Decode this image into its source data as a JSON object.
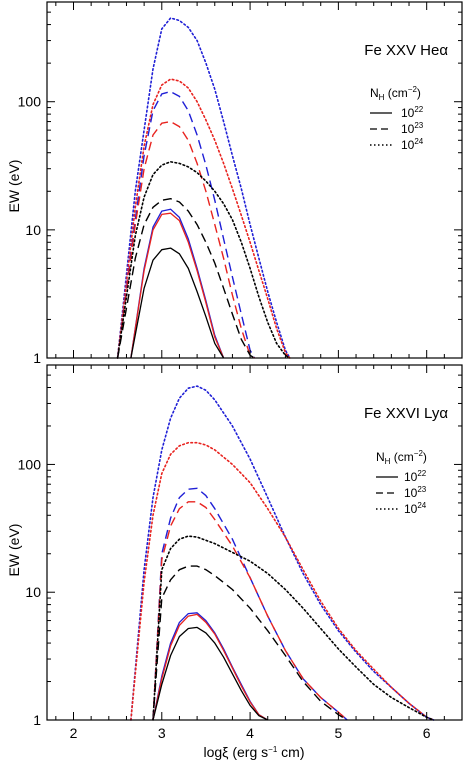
{
  "chart_data": [
    {
      "type": "line",
      "title": "Fe XXV Heα",
      "xlabel": "",
      "ylabel": "EW (eV)",
      "xscale": "linear",
      "yscale": "log",
      "xlim": [
        1.7,
        6.4
      ],
      "ylim": [
        1,
        600
      ],
      "xticks": [
        2,
        3,
        4,
        5,
        6
      ],
      "yticks": [
        {
          "value": 1,
          "label": "1"
        },
        {
          "value": 10,
          "label": "10"
        },
        {
          "value": 100,
          "label": "100"
        }
      ],
      "legend": {
        "title": {
          "main": "N",
          "sub": "H",
          "rest": " (cm",
          "exp": "−2",
          "close": ")"
        },
        "placement": "top-right",
        "entries": [
          {
            "base": "10",
            "exp": "22",
            "linestyle": "solid"
          },
          {
            "base": "10",
            "exp": "23",
            "linestyle": "dashed"
          },
          {
            "base": "10",
            "exp": "24",
            "linestyle": "dotted"
          }
        ]
      },
      "series": [
        {
          "linestyle": "dotted",
          "color": "#1f1fd6",
          "x": [
            2.5,
            2.7,
            2.8,
            2.9,
            3.0,
            3.1,
            3.2,
            3.3,
            3.4,
            3.5,
            3.6,
            3.7,
            3.8,
            3.9,
            4.0,
            4.1,
            4.2,
            4.3,
            4.4,
            4.45
          ],
          "y": [
            1.0,
            20,
            60,
            180,
            370,
            450,
            430,
            380,
            300,
            200,
            125,
            70,
            38,
            21,
            11,
            6.0,
            3.3,
            1.9,
            1.15,
            1.0
          ]
        },
        {
          "linestyle": "dotted",
          "color": "#e8231f",
          "x": [
            2.5,
            2.7,
            2.8,
            2.9,
            3.0,
            3.1,
            3.2,
            3.3,
            3.4,
            3.5,
            3.6,
            3.7,
            3.8,
            3.9,
            4.0,
            4.1,
            4.2,
            4.3,
            4.4,
            4.45
          ],
          "y": [
            1.0,
            15,
            45,
            95,
            135,
            150,
            145,
            128,
            100,
            72,
            50,
            33,
            21,
            13,
            8.0,
            4.8,
            2.9,
            1.7,
            1.1,
            1.0
          ]
        },
        {
          "linestyle": "dashed",
          "color": "#1f1fd6",
          "x": [
            2.5,
            2.7,
            2.8,
            2.9,
            3.0,
            3.1,
            3.2,
            3.3,
            3.4,
            3.5,
            3.6,
            3.7,
            3.8,
            3.9,
            4.0,
            4.05
          ],
          "y": [
            1.0,
            12,
            38,
            85,
            115,
            120,
            110,
            85,
            55,
            32,
            17,
            8.5,
            4.3,
            2.2,
            1.15,
            1.0
          ]
        },
        {
          "linestyle": "dashed",
          "color": "#e8231f",
          "x": [
            2.5,
            2.7,
            2.8,
            2.9,
            3.0,
            3.1,
            3.2,
            3.3,
            3.4,
            3.5,
            3.6,
            3.7,
            3.8,
            3.9,
            4.0,
            4.05
          ],
          "y": [
            1.0,
            11,
            30,
            55,
            68,
            70,
            64,
            50,
            33,
            20,
            11,
            6.0,
            3.1,
            1.7,
            1.05,
            1.0
          ]
        },
        {
          "linestyle": "dotted",
          "color": "#000000",
          "x": [
            2.5,
            2.7,
            2.8,
            2.9,
            3.0,
            3.1,
            3.2,
            3.3,
            3.4,
            3.5,
            3.6,
            3.7,
            3.8,
            3.9,
            4.0,
            4.1,
            4.2,
            4.3,
            4.4,
            4.45
          ],
          "y": [
            1.0,
            9,
            18,
            27,
            32,
            34,
            33,
            31,
            28,
            24,
            20,
            16,
            12,
            8.0,
            5.0,
            3.0,
            1.9,
            1.3,
            1.05,
            1.0
          ]
        },
        {
          "linestyle": "dashed",
          "color": "#000000",
          "x": [
            2.5,
            2.7,
            2.8,
            2.9,
            3.0,
            3.1,
            3.2,
            3.3,
            3.4,
            3.5,
            3.6,
            3.7,
            3.8,
            3.9,
            4.0,
            4.05
          ],
          "y": [
            1.0,
            6,
            11,
            15,
            17,
            17.5,
            16.5,
            14,
            11,
            8.0,
            5.5,
            3.5,
            2.2,
            1.4,
            1.05,
            1.0
          ]
        },
        {
          "linestyle": "solid",
          "color": "#1f1fd6",
          "x": [
            2.65,
            2.8,
            2.9,
            3.0,
            3.1,
            3.2,
            3.3,
            3.4,
            3.5,
            3.6,
            3.7
          ],
          "y": [
            1.0,
            5.0,
            10.5,
            14,
            14.5,
            12.5,
            8.5,
            5.0,
            2.8,
            1.5,
            1.0
          ]
        },
        {
          "linestyle": "solid",
          "color": "#e8231f",
          "x": [
            2.65,
            2.8,
            2.9,
            3.0,
            3.1,
            3.2,
            3.3,
            3.4,
            3.5,
            3.6,
            3.7
          ],
          "y": [
            1.0,
            4.8,
            10,
            13.2,
            13.5,
            11.8,
            8.0,
            4.8,
            2.7,
            1.45,
            1.0
          ]
        },
        {
          "linestyle": "solid",
          "color": "#000000",
          "x": [
            2.65,
            2.8,
            2.9,
            3.0,
            3.1,
            3.2,
            3.3,
            3.4,
            3.5,
            3.6,
            3.7
          ],
          "y": [
            1.0,
            3.5,
            5.8,
            7.0,
            7.2,
            6.5,
            5.0,
            3.3,
            2.1,
            1.3,
            1.0
          ]
        }
      ]
    },
    {
      "type": "line",
      "title": "Fe XXVI Lyα",
      "xlabel": {
        "main": "logξ",
        "rest": " (erg s",
        "exp": "−1",
        "close": " cm)"
      },
      "ylabel": "EW (eV)",
      "xscale": "linear",
      "yscale": "log",
      "xlim": [
        1.7,
        6.4
      ],
      "ylim": [
        1,
        600
      ],
      "xticks": [
        2,
        3,
        4,
        5,
        6
      ],
      "yticks": [
        {
          "value": 1,
          "label": "1"
        },
        {
          "value": 10,
          "label": "10"
        },
        {
          "value": 100,
          "label": "100"
        }
      ],
      "legend": {
        "title": {
          "main": "N",
          "sub": "H",
          "rest": " (cm",
          "exp": "−2",
          "close": ")"
        },
        "placement": "right",
        "entries": [
          {
            "base": "10",
            "exp": "22",
            "linestyle": "solid"
          },
          {
            "base": "10",
            "exp": "23",
            "linestyle": "dashed"
          },
          {
            "base": "10",
            "exp": "24",
            "linestyle": "dotted"
          }
        ]
      },
      "series": [
        {
          "linestyle": "dotted",
          "color": "#1f1fd6",
          "x": [
            2.65,
            2.8,
            2.9,
            3.0,
            3.1,
            3.2,
            3.3,
            3.4,
            3.5,
            3.6,
            3.8,
            4.0,
            4.2,
            4.4,
            4.6,
            4.8,
            5.0,
            5.2,
            5.4,
            5.6,
            5.8,
            6.0,
            6.08
          ],
          "y": [
            1.0,
            15,
            55,
            130,
            230,
            330,
            395,
            410,
            380,
            320,
            200,
            110,
            55,
            27,
            14,
            8.0,
            5.0,
            3.4,
            2.4,
            1.8,
            1.35,
            1.05,
            1.0
          ]
        },
        {
          "linestyle": "dotted",
          "color": "#e8231f",
          "x": [
            2.65,
            2.8,
            2.9,
            3.0,
            3.1,
            3.2,
            3.3,
            3.4,
            3.5,
            3.6,
            3.8,
            4.0,
            4.2,
            4.4,
            4.6,
            4.8,
            5.0,
            5.2,
            5.4,
            5.6,
            5.8,
            6.0,
            6.08
          ],
          "y": [
            1.0,
            12,
            40,
            85,
            120,
            140,
            148,
            148,
            142,
            130,
            100,
            72,
            45,
            27,
            15,
            8.5,
            5.2,
            3.5,
            2.5,
            1.8,
            1.35,
            1.05,
            1.0
          ]
        },
        {
          "linestyle": "dashed",
          "color": "#1f1fd6",
          "x": [
            2.9,
            3.0,
            3.1,
            3.2,
            3.3,
            3.4,
            3.5,
            3.6,
            3.8,
            4.0,
            4.2,
            4.4,
            4.6,
            4.8,
            5.0,
            5.1
          ],
          "y": [
            1.0,
            20,
            38,
            55,
            64,
            65,
            57,
            45,
            26,
            13,
            6.5,
            3.5,
            2.1,
            1.5,
            1.15,
            1.0
          ]
        },
        {
          "linestyle": "dashed",
          "color": "#e8231f",
          "x": [
            2.9,
            3.0,
            3.1,
            3.2,
            3.3,
            3.4,
            3.5,
            3.6,
            3.8,
            4.0,
            4.2,
            4.4,
            4.6,
            4.8,
            5.0,
            5.1
          ],
          "y": [
            1.0,
            18,
            33,
            45,
            51,
            51,
            46,
            37,
            23,
            13,
            6.5,
            3.5,
            2.1,
            1.5,
            1.15,
            1.0
          ]
        },
        {
          "linestyle": "dotted",
          "color": "#000000",
          "x": [
            2.9,
            3.0,
            3.1,
            3.2,
            3.3,
            3.4,
            3.5,
            3.6,
            3.8,
            4.0,
            4.2,
            4.4,
            4.6,
            4.8,
            5.0,
            5.2,
            5.4,
            5.6,
            5.8,
            6.0,
            6.08
          ],
          "y": [
            1.0,
            15,
            22,
            26,
            27.5,
            27,
            25.5,
            24,
            20.5,
            17.5,
            14,
            10.5,
            7.5,
            5.2,
            3.6,
            2.6,
            1.9,
            1.5,
            1.25,
            1.05,
            1.0
          ]
        },
        {
          "linestyle": "dashed",
          "color": "#000000",
          "x": [
            2.9,
            3.0,
            3.1,
            3.2,
            3.3,
            3.4,
            3.5,
            3.6,
            3.8,
            4.0,
            4.2,
            4.4,
            4.6,
            4.8,
            5.0,
            5.1
          ],
          "y": [
            1.0,
            9,
            12.5,
            15,
            16,
            16,
            15,
            13.5,
            10.5,
            7.5,
            5.0,
            3.2,
            2.0,
            1.4,
            1.1,
            1.0
          ]
        },
        {
          "linestyle": "solid",
          "color": "#1f1fd6",
          "x": [
            2.9,
            3.0,
            3.1,
            3.2,
            3.3,
            3.4,
            3.5,
            3.6,
            3.7,
            3.8,
            3.9,
            4.0,
            4.1,
            4.2
          ],
          "y": [
            1.0,
            2.2,
            4.0,
            5.8,
            6.8,
            6.9,
            6.0,
            4.8,
            3.6,
            2.6,
            1.9,
            1.4,
            1.1,
            1.0
          ]
        },
        {
          "linestyle": "solid",
          "color": "#e8231f",
          "x": [
            2.9,
            3.0,
            3.1,
            3.2,
            3.3,
            3.4,
            3.5,
            3.6,
            3.7,
            3.8,
            3.9,
            4.0,
            4.1,
            4.2
          ],
          "y": [
            1.0,
            2.1,
            3.8,
            5.5,
            6.5,
            6.7,
            5.8,
            4.7,
            3.5,
            2.55,
            1.85,
            1.38,
            1.1,
            1.0
          ]
        },
        {
          "linestyle": "solid",
          "color": "#000000",
          "x": [
            2.9,
            3.0,
            3.1,
            3.2,
            3.3,
            3.4,
            3.5,
            3.6,
            3.7,
            3.8,
            3.9,
            4.0,
            4.1,
            4.2
          ],
          "y": [
            1.0,
            1.9,
            3.2,
            4.5,
            5.2,
            5.3,
            4.8,
            4.0,
            3.1,
            2.3,
            1.7,
            1.3,
            1.08,
            1.0
          ]
        }
      ]
    }
  ]
}
